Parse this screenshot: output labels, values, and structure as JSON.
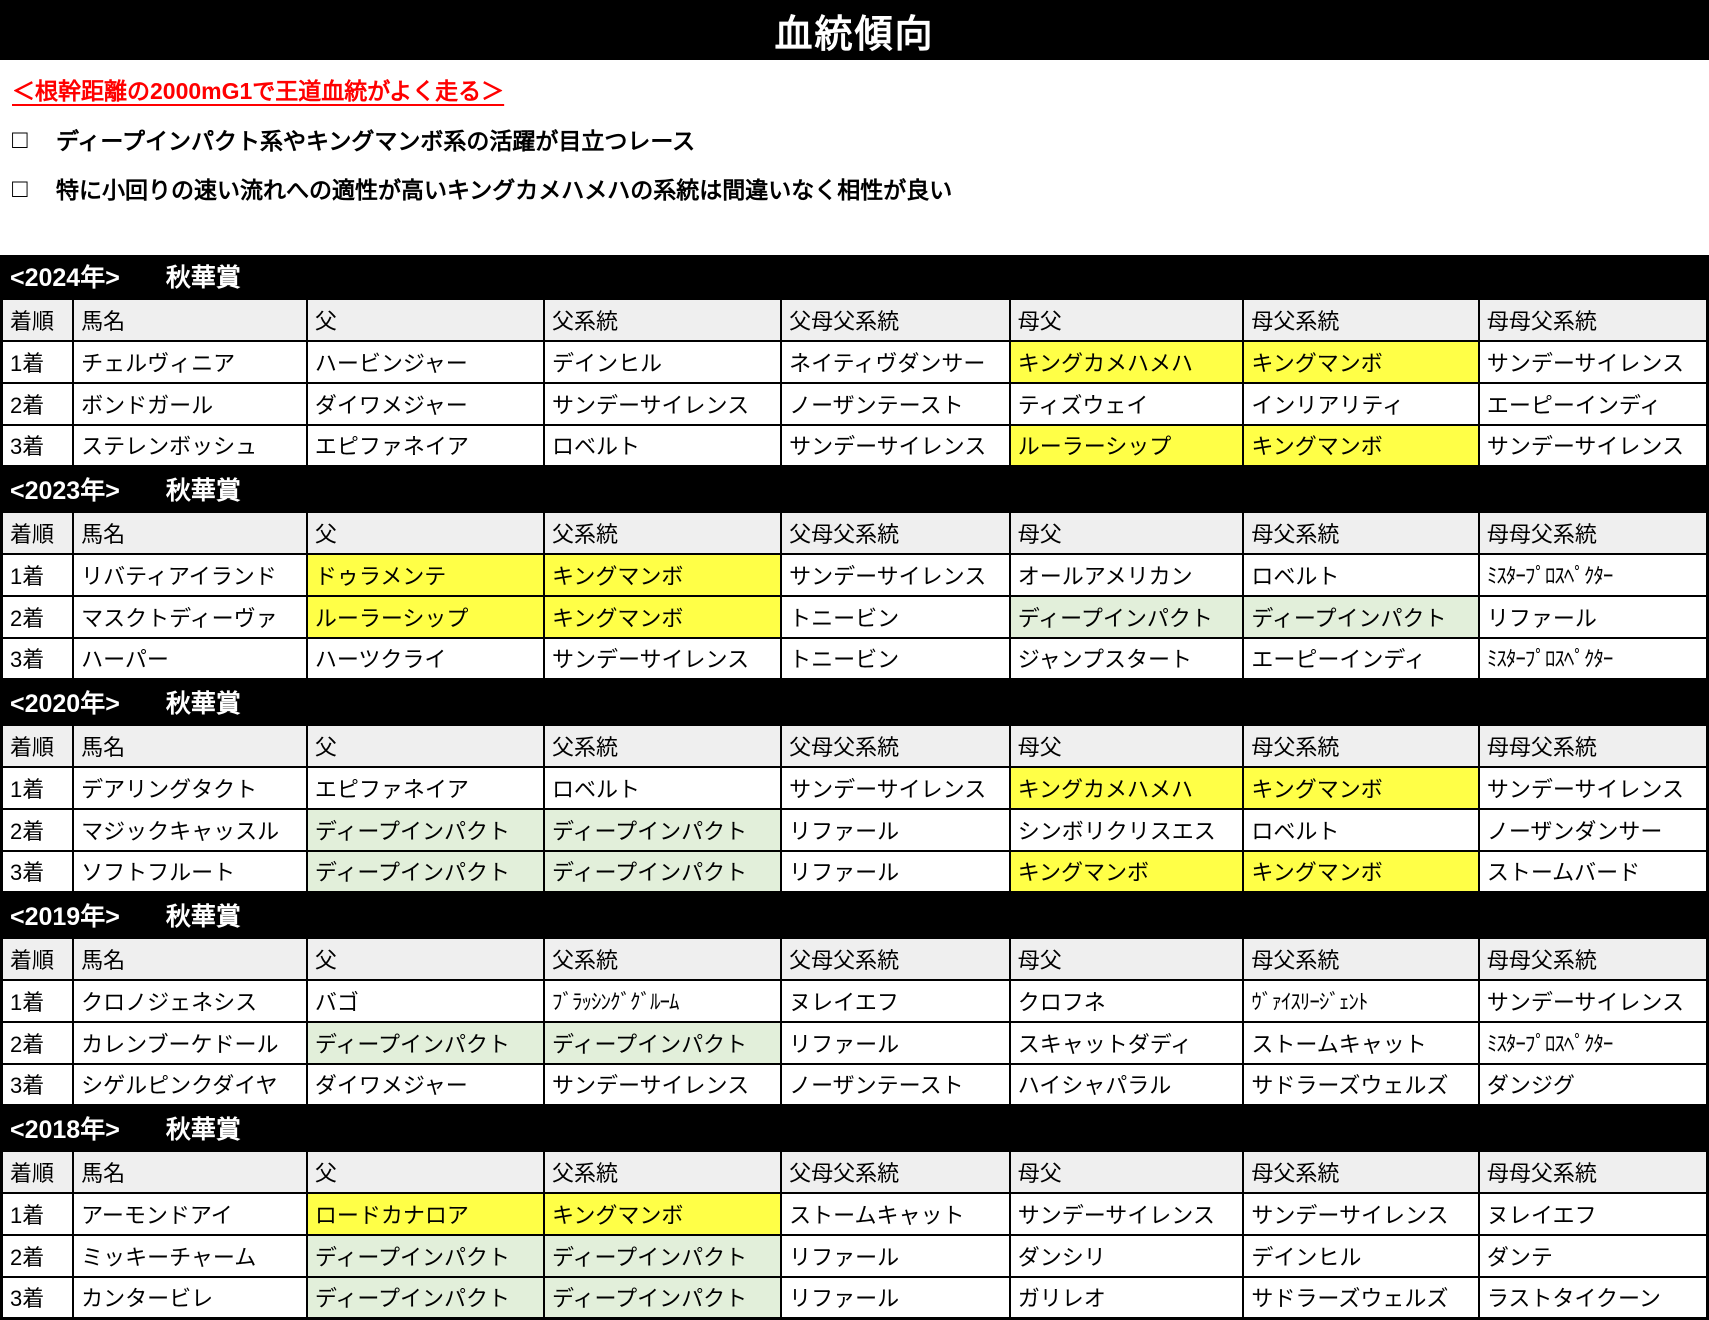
{
  "title": "血統傾向",
  "intro": {
    "heading": "＜根幹距離の2000mG1で王道血統がよく走る＞",
    "bullets": [
      {
        "checkbox": "□",
        "text": "ディープインパクト系やキングマンボ系の活躍が目立つレース"
      },
      {
        "checkbox": "□",
        "text": "特に小回りの速い流れへの適性が高いキングカメハメハの系統は間違いなく相性が良い"
      }
    ]
  },
  "colors": {
    "highlight_yellow": "#FFFF47",
    "highlight_green": "#E2EFDA",
    "header_bg": "#EFEFEF",
    "band_bg": "#000000",
    "heading_red": "#FF0000"
  },
  "columns": [
    "着順",
    "馬名",
    "父",
    "父系統",
    "父母父系統",
    "母父",
    "母父系統",
    "母母父系統"
  ],
  "column_widths": [
    "4.2%",
    "13.7%",
    "13.9%",
    "13.9%",
    "13.4%",
    "13.7%",
    "13.8%",
    "13.4%"
  ],
  "sections": [
    {
      "year": "<2024年>",
      "race": "秋華賞",
      "rows": [
        [
          {
            "t": "1着"
          },
          {
            "t": "チェルヴィニア"
          },
          {
            "t": "ハービンジャー"
          },
          {
            "t": "デインヒル"
          },
          {
            "t": "ネイティヴダンサー"
          },
          {
            "t": "キングカメハメハ",
            "h": "y"
          },
          {
            "t": "キングマンボ",
            "h": "y"
          },
          {
            "t": "サンデーサイレンス"
          }
        ],
        [
          {
            "t": "2着"
          },
          {
            "t": "ボンドガール"
          },
          {
            "t": "ダイワメジャー"
          },
          {
            "t": "サンデーサイレンス"
          },
          {
            "t": "ノーザンテースト"
          },
          {
            "t": "ティズウェイ"
          },
          {
            "t": "インリアリティ"
          },
          {
            "t": "エーピーインディ"
          }
        ],
        [
          {
            "t": "3着"
          },
          {
            "t": "ステレンボッシュ"
          },
          {
            "t": "エピファネイア"
          },
          {
            "t": "ロベルト"
          },
          {
            "t": "サンデーサイレンス"
          },
          {
            "t": "ルーラーシップ",
            "h": "y"
          },
          {
            "t": "キングマンボ",
            "h": "y"
          },
          {
            "t": "サンデーサイレンス"
          }
        ]
      ]
    },
    {
      "year": "<2023年>",
      "race": "秋華賞",
      "rows": [
        [
          {
            "t": "1着"
          },
          {
            "t": "リバティアイランド"
          },
          {
            "t": "ドゥラメンテ",
            "h": "y"
          },
          {
            "t": "キングマンボ",
            "h": "y"
          },
          {
            "t": "サンデーサイレンス"
          },
          {
            "t": "オールアメリカン"
          },
          {
            "t": "ロベルト"
          },
          {
            "t": "ﾐｽﾀｰﾌﾟﾛｽﾍﾟｸﾀｰ",
            "n": true
          }
        ],
        [
          {
            "t": "2着"
          },
          {
            "t": "マスクトディーヴァ"
          },
          {
            "t": "ルーラーシップ",
            "h": "y"
          },
          {
            "t": "キングマンボ",
            "h": "y"
          },
          {
            "t": "トニービン"
          },
          {
            "t": "ディープインパクト",
            "h": "g"
          },
          {
            "t": "ディープインパクト",
            "h": "g"
          },
          {
            "t": "リファール"
          }
        ],
        [
          {
            "t": "3着"
          },
          {
            "t": "ハーパー"
          },
          {
            "t": "ハーツクライ"
          },
          {
            "t": "サンデーサイレンス"
          },
          {
            "t": "トニービン"
          },
          {
            "t": "ジャンプスタート"
          },
          {
            "t": "エーピーインディ"
          },
          {
            "t": "ﾐｽﾀｰﾌﾟﾛｽﾍﾟｸﾀｰ",
            "n": true
          }
        ]
      ]
    },
    {
      "year": "<2020年>",
      "race": "秋華賞",
      "rows": [
        [
          {
            "t": "1着"
          },
          {
            "t": "デアリングタクト"
          },
          {
            "t": "エピファネイア"
          },
          {
            "t": "ロベルト"
          },
          {
            "t": "サンデーサイレンス"
          },
          {
            "t": "キングカメハメハ",
            "h": "y"
          },
          {
            "t": "キングマンボ",
            "h": "y"
          },
          {
            "t": "サンデーサイレンス"
          }
        ],
        [
          {
            "t": "2着"
          },
          {
            "t": "マジックキャッスル"
          },
          {
            "t": "ディープインパクト",
            "h": "g"
          },
          {
            "t": "ディープインパクト",
            "h": "g"
          },
          {
            "t": "リファール"
          },
          {
            "t": "シンボリクリスエス"
          },
          {
            "t": "ロベルト"
          },
          {
            "t": "ノーザンダンサー"
          }
        ],
        [
          {
            "t": "3着"
          },
          {
            "t": "ソフトフルート"
          },
          {
            "t": "ディープインパクト",
            "h": "g"
          },
          {
            "t": "ディープインパクト",
            "h": "g"
          },
          {
            "t": "リファール"
          },
          {
            "t": "キングマンボ",
            "h": "y"
          },
          {
            "t": "キングマンボ",
            "h": "y"
          },
          {
            "t": "ストームバード"
          }
        ]
      ]
    },
    {
      "year": "<2019年>",
      "race": "秋華賞",
      "rows": [
        [
          {
            "t": "1着"
          },
          {
            "t": "クロノジェネシス"
          },
          {
            "t": "バゴ"
          },
          {
            "t": "ﾌﾞﾗｯｼﾝｸﾞｸﾞﾙｰﾑ",
            "n": true
          },
          {
            "t": "ヌレイエフ"
          },
          {
            "t": "クロフネ"
          },
          {
            "t": "ｳﾞｧｲｽﾘｰｼﾞｪﾝﾄ",
            "n": true
          },
          {
            "t": "サンデーサイレンス"
          }
        ],
        [
          {
            "t": "2着"
          },
          {
            "t": "カレンブーケドール"
          },
          {
            "t": "ディープインパクト",
            "h": "g"
          },
          {
            "t": "ディープインパクト",
            "h": "g"
          },
          {
            "t": "リファール"
          },
          {
            "t": "スキャットダディ"
          },
          {
            "t": "ストームキャット"
          },
          {
            "t": "ﾐｽﾀｰﾌﾟﾛｽﾍﾟｸﾀｰ",
            "n": true
          }
        ],
        [
          {
            "t": "3着"
          },
          {
            "t": "シゲルピンクダイヤ"
          },
          {
            "t": "ダイワメジャー"
          },
          {
            "t": "サンデーサイレンス"
          },
          {
            "t": "ノーザンテースト"
          },
          {
            "t": "ハイシャパラル"
          },
          {
            "t": "サドラーズウェルズ"
          },
          {
            "t": "ダンジグ"
          }
        ]
      ]
    },
    {
      "year": "<2018年>",
      "race": "秋華賞",
      "rows": [
        [
          {
            "t": "1着"
          },
          {
            "t": "アーモンドアイ"
          },
          {
            "t": "ロードカナロア",
            "h": "y"
          },
          {
            "t": "キングマンボ",
            "h": "y"
          },
          {
            "t": "ストームキャット"
          },
          {
            "t": "サンデーサイレンス"
          },
          {
            "t": "サンデーサイレンス"
          },
          {
            "t": "ヌレイエフ"
          }
        ],
        [
          {
            "t": "2着"
          },
          {
            "t": "ミッキーチャーム"
          },
          {
            "t": "ディープインパクト",
            "h": "g"
          },
          {
            "t": "ディープインパクト",
            "h": "g"
          },
          {
            "t": "リファール"
          },
          {
            "t": "ダンシリ"
          },
          {
            "t": "デインヒル"
          },
          {
            "t": "ダンテ"
          }
        ],
        [
          {
            "t": "3着"
          },
          {
            "t": "カンタービレ"
          },
          {
            "t": "ディープインパクト",
            "h": "g"
          },
          {
            "t": "ディープインパクト",
            "h": "g"
          },
          {
            "t": "リファール"
          },
          {
            "t": "ガリレオ"
          },
          {
            "t": "サドラーズウェルズ"
          },
          {
            "t": "ラストタイクーン"
          }
        ]
      ]
    }
  ]
}
